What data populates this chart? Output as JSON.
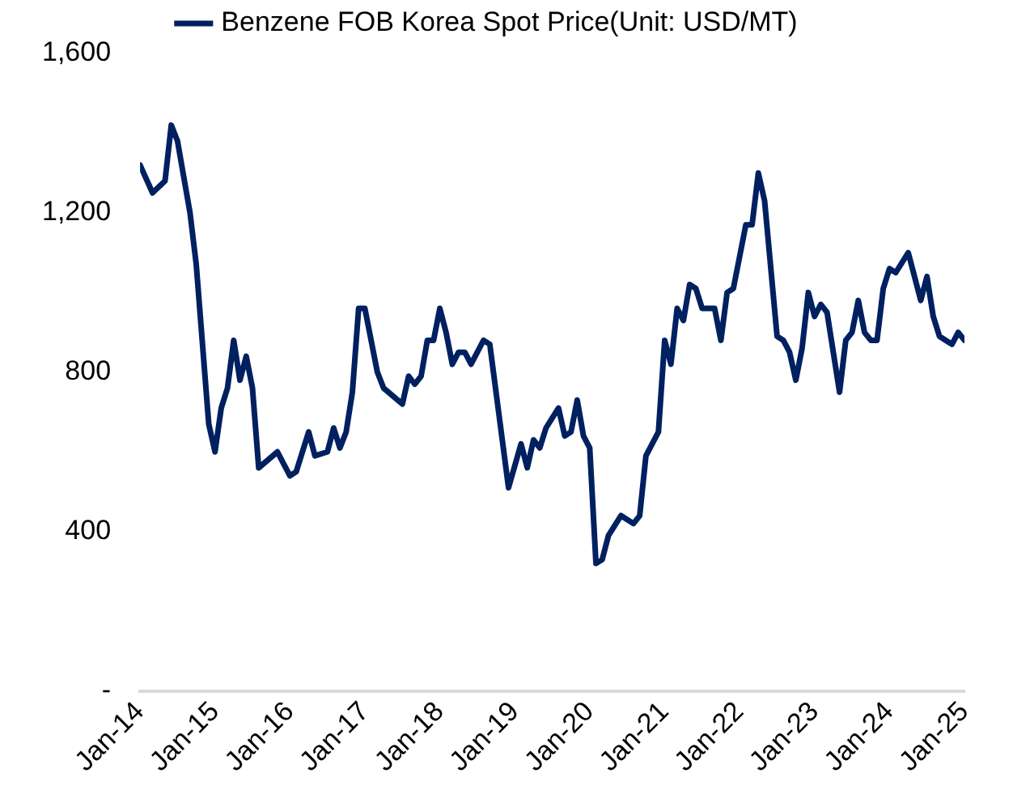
{
  "chart_data": {
    "type": "line",
    "x": [
      "2014-01",
      "2014-03",
      "2014-05",
      "2014-06",
      "2014-07",
      "2014-09",
      "2014-10",
      "2014-12",
      "2015-01",
      "2015-02",
      "2015-03",
      "2015-04",
      "2015-05",
      "2015-06",
      "2015-07",
      "2015-08",
      "2015-11",
      "2016-01",
      "2016-02",
      "2016-04",
      "2016-05",
      "2016-07",
      "2016-08",
      "2016-09",
      "2016-10",
      "2016-11",
      "2016-12",
      "2017-01",
      "2017-03",
      "2017-04",
      "2017-07",
      "2017-08",
      "2017-09",
      "2017-10",
      "2017-11",
      "2017-12",
      "2018-01",
      "2018-02",
      "2018-03",
      "2018-04",
      "2018-05",
      "2018-06",
      "2018-08",
      "2018-09",
      "2018-10",
      "2018-12",
      "2019-02",
      "2019-03",
      "2019-04",
      "2019-05",
      "2019-06",
      "2019-08",
      "2019-09",
      "2019-10",
      "2019-11",
      "2019-12",
      "2020-01",
      "2020-02",
      "2020-03",
      "2020-04",
      "2020-06",
      "2020-08",
      "2020-09",
      "2020-10",
      "2020-11",
      "2020-12",
      "2021-01",
      "2021-02",
      "2021-03",
      "2021-04",
      "2021-05",
      "2021-06",
      "2021-07",
      "2021-09",
      "2021-10",
      "2021-11",
      "2021-12",
      "2022-01",
      "2022-02",
      "2022-03",
      "2022-04",
      "2022-05",
      "2022-07",
      "2022-08",
      "2022-09",
      "2022-10",
      "2022-11",
      "2022-12",
      "2023-01",
      "2023-02",
      "2023-03",
      "2023-05",
      "2023-06",
      "2023-07",
      "2023-08",
      "2023-09",
      "2023-10",
      "2023-11",
      "2023-12",
      "2024-01",
      "2024-02",
      "2024-04",
      "2024-05",
      "2024-06",
      "2024-07",
      "2024-08",
      "2024-09",
      "2024-10",
      "2024-11",
      "2024-12",
      "2025-01"
    ],
    "series": [
      {
        "name": "Benzene FOB Korea Spot Price(Unit: USD/MT)",
        "color": "#002060",
        "values": [
          1320,
          1250,
          1280,
          1420,
          1380,
          1200,
          1070,
          670,
          600,
          710,
          760,
          880,
          780,
          840,
          760,
          560,
          600,
          540,
          550,
          650,
          590,
          600,
          660,
          610,
          650,
          750,
          960,
          960,
          800,
          760,
          720,
          790,
          770,
          790,
          880,
          880,
          960,
          900,
          820,
          850,
          850,
          820,
          880,
          870,
          750,
          510,
          620,
          560,
          630,
          610,
          660,
          710,
          640,
          650,
          730,
          640,
          610,
          320,
          330,
          390,
          440,
          420,
          440,
          590,
          620,
          650,
          880,
          820,
          960,
          930,
          1020,
          1010,
          960,
          960,
          880,
          1000,
          1010,
          1090,
          1170,
          1170,
          1300,
          1230,
          890,
          880,
          850,
          780,
          860,
          1000,
          940,
          970,
          950,
          750,
          880,
          900,
          980,
          900,
          880,
          880,
          1010,
          1060,
          1050,
          1100,
          1040,
          980,
          1040,
          940,
          890,
          880,
          870,
          900,
          880
        ]
      }
    ],
    "xlim": [
      "2014-01",
      "2025-01"
    ],
    "xticks": [
      {
        "value": "2014-01",
        "label": "Jan-14"
      },
      {
        "value": "2015-01",
        "label": "Jan-15"
      },
      {
        "value": "2016-01",
        "label": "Jan-16"
      },
      {
        "value": "2017-01",
        "label": "Jan-17"
      },
      {
        "value": "2018-01",
        "label": "Jan-18"
      },
      {
        "value": "2019-01",
        "label": "Jan-19"
      },
      {
        "value": "2020-01",
        "label": "Jan-20"
      },
      {
        "value": "2021-01",
        "label": "Jan-21"
      },
      {
        "value": "2022-01",
        "label": "Jan-22"
      },
      {
        "value": "2023-01",
        "label": "Jan-23"
      },
      {
        "value": "2024-01",
        "label": "Jan-24"
      },
      {
        "value": "2025-01",
        "label": "Jan-25"
      }
    ],
    "ylim": [
      0,
      1600
    ],
    "yticks": [
      {
        "value": 0,
        "label": "-"
      },
      {
        "value": 400,
        "label": "400"
      },
      {
        "value": 800,
        "label": "800"
      },
      {
        "value": 1200,
        "label": "1,200"
      },
      {
        "value": 1600,
        "label": "1,600"
      }
    ],
    "grid": false,
    "legend": "top",
    "marker": "none",
    "line_style": "solid"
  }
}
